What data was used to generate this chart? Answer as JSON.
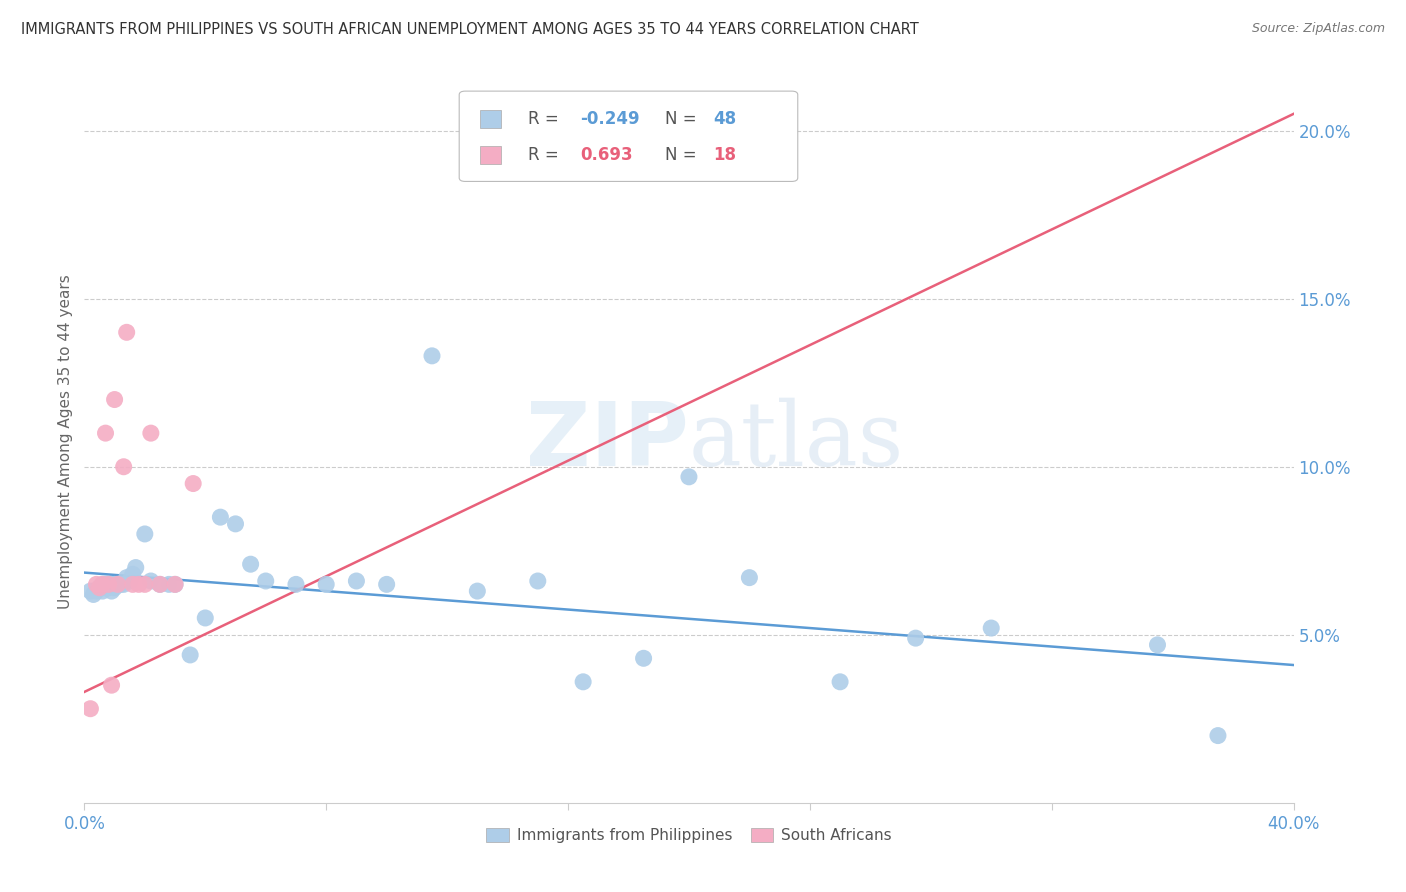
{
  "title": "IMMIGRANTS FROM PHILIPPINES VS SOUTH AFRICAN UNEMPLOYMENT AMONG AGES 35 TO 44 YEARS CORRELATION CHART",
  "source": "Source: ZipAtlas.com",
  "ylabel": "Unemployment Among Ages 35 to 44 years",
  "xlim": [
    0.0,
    0.4
  ],
  "ylim": [
    0.0,
    0.215
  ],
  "legend_blue_r": "-0.249",
  "legend_blue_n": "48",
  "legend_pink_r": "0.693",
  "legend_pink_n": "18",
  "blue_color": "#aecde8",
  "pink_color": "#f4adc4",
  "blue_line_color": "#5b9bd5",
  "pink_line_color": "#e8607a",
  "blue_text_color": "#5b9bd5",
  "pink_text_color": "#e8607a",
  "axis_color": "#5b9bd5",
  "watermark_color": "#ddeeff",
  "blue_scatter_x": [
    0.002,
    0.003,
    0.004,
    0.005,
    0.006,
    0.006,
    0.007,
    0.007,
    0.008,
    0.008,
    0.009,
    0.009,
    0.01,
    0.01,
    0.011,
    0.012,
    0.013,
    0.014,
    0.015,
    0.016,
    0.017,
    0.02,
    0.022,
    0.025,
    0.028,
    0.03,
    0.035,
    0.04,
    0.045,
    0.05,
    0.055,
    0.06,
    0.07,
    0.08,
    0.09,
    0.1,
    0.115,
    0.13,
    0.15,
    0.165,
    0.185,
    0.2,
    0.22,
    0.25,
    0.275,
    0.3,
    0.355,
    0.375
  ],
  "blue_scatter_y": [
    0.063,
    0.062,
    0.063,
    0.064,
    0.065,
    0.063,
    0.065,
    0.064,
    0.065,
    0.064,
    0.065,
    0.063,
    0.064,
    0.065,
    0.065,
    0.065,
    0.065,
    0.067,
    0.066,
    0.068,
    0.07,
    0.08,
    0.066,
    0.065,
    0.065,
    0.065,
    0.044,
    0.055,
    0.085,
    0.083,
    0.071,
    0.066,
    0.065,
    0.065,
    0.066,
    0.065,
    0.133,
    0.063,
    0.066,
    0.036,
    0.043,
    0.097,
    0.067,
    0.036,
    0.049,
    0.052,
    0.047,
    0.02
  ],
  "pink_scatter_x": [
    0.002,
    0.004,
    0.005,
    0.006,
    0.007,
    0.008,
    0.009,
    0.01,
    0.011,
    0.013,
    0.014,
    0.016,
    0.018,
    0.02,
    0.022,
    0.025,
    0.03,
    0.036
  ],
  "pink_scatter_y": [
    0.028,
    0.065,
    0.064,
    0.065,
    0.11,
    0.065,
    0.035,
    0.12,
    0.065,
    0.1,
    0.14,
    0.065,
    0.065,
    0.065,
    0.11,
    0.065,
    0.065,
    0.095
  ],
  "blue_trendline_x": [
    0.0,
    0.4
  ],
  "blue_trendline_y": [
    0.0685,
    0.041
  ],
  "pink_trendline_x": [
    0.0,
    0.4
  ],
  "pink_trendline_y": [
    0.033,
    0.205
  ]
}
